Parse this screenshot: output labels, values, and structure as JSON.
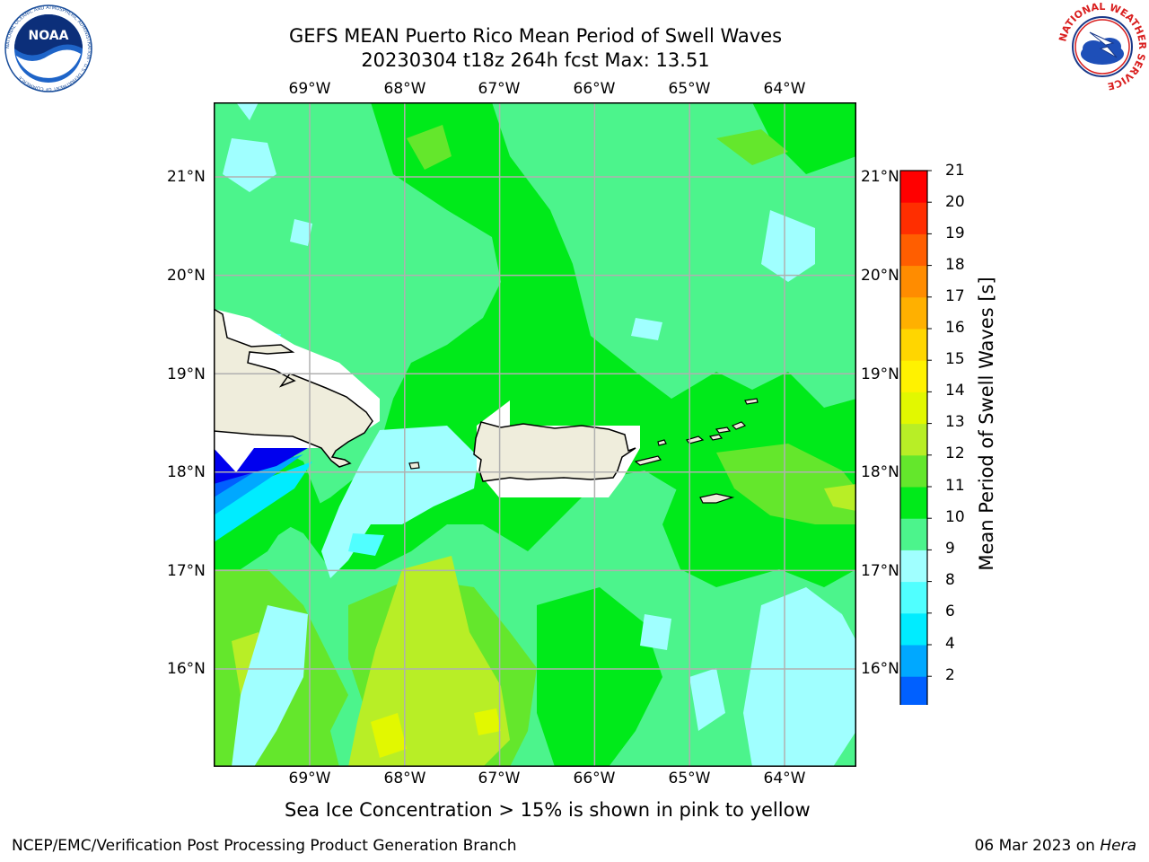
{
  "header": {
    "title_line1": "GEFS MEAN Puerto Rico Mean Period of Swell Waves",
    "title_line2": "20230304 t18z 264h fcst   Max: 13.51"
  },
  "logos": {
    "left": {
      "name": "NOAA",
      "ring_text": "NATIONAL OCEANIC AND ATMOSPHERIC ADMINISTRATION · U.S. DEPARTMENT OF COMMERCE"
    },
    "right": {
      "name": "NATIONAL WEATHER SERVICE"
    }
  },
  "map": {
    "lon_ticks": [
      "69°W",
      "68°W",
      "67°W",
      "66°W",
      "65°W",
      "64°W"
    ],
    "lat_ticks": [
      "21°N",
      "20°N",
      "19°N",
      "18°N",
      "17°N",
      "16°N"
    ],
    "lon_values": [
      -69,
      -68,
      -67,
      -66,
      -65,
      -64
    ],
    "lat_values": [
      21,
      20,
      19,
      18,
      17,
      16
    ],
    "land_color": "#efeddc",
    "mask_color": "#ffffff",
    "gridline_color": "#b0b0b0"
  },
  "colorbar": {
    "title": "Mean Period of Swell Waves [s]",
    "levels": [
      "21",
      "20",
      "19",
      "18",
      "17",
      "16",
      "15",
      "14",
      "13",
      "12",
      "11",
      "10",
      "9",
      "8",
      "6",
      "4",
      "2"
    ],
    "level_values": [
      2,
      4,
      6,
      8,
      9,
      10,
      11,
      12,
      13,
      14,
      15,
      16,
      17,
      18,
      19,
      20,
      21
    ],
    "colors": [
      "#0000ee",
      "#0060ff",
      "#00a8ff",
      "#00ecff",
      "#50ffff",
      "#a0ffff",
      "#4cf48c",
      "#00ea1a",
      "#64e72c",
      "#b8ee26",
      "#e2f800",
      "#fff200",
      "#ffd600",
      "#ffb000",
      "#ff8c00",
      "#ff5e00",
      "#ff2e00",
      "#ff0000"
    ],
    "extend": "min"
  },
  "note": "Sea Ice Concentration > 15% is shown in pink to yellow",
  "footer": {
    "left": "NCEP/EMC/Verification Post Processing Product Generation Branch",
    "date": "06 Mar 2023 on",
    "machine": "Hera"
  }
}
